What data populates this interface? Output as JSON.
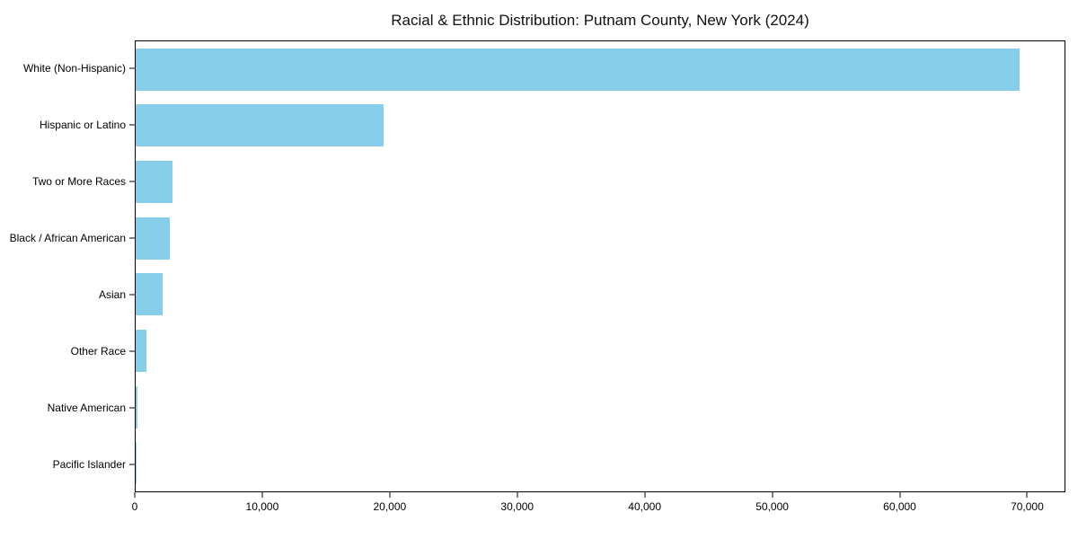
{
  "chart_data": {
    "type": "bar",
    "orientation": "horizontal",
    "title": "Racial & Ethnic Distribution: Putnam County, New York (2024)",
    "categories": [
      "White (Non-Hispanic)",
      "Hispanic or Latino",
      "Two or More Races",
      "Black / African American",
      "Asian",
      "Other Race",
      "Native American",
      "Pacific Islander"
    ],
    "values": [
      69500,
      19500,
      2900,
      2650,
      2100,
      850,
      150,
      30
    ],
    "xlabel": "",
    "ylabel": "",
    "xlim": [
      0,
      73000
    ],
    "x_ticks": [
      0,
      10000,
      20000,
      30000,
      40000,
      50000,
      60000,
      70000
    ],
    "x_tick_labels": [
      "0",
      "10,000",
      "20,000",
      "30,000",
      "40,000",
      "50,000",
      "60,000",
      "70,000"
    ],
    "bar_color": "#87CEEB",
    "axis_color": "#000000",
    "grid": false,
    "legend": null
  }
}
